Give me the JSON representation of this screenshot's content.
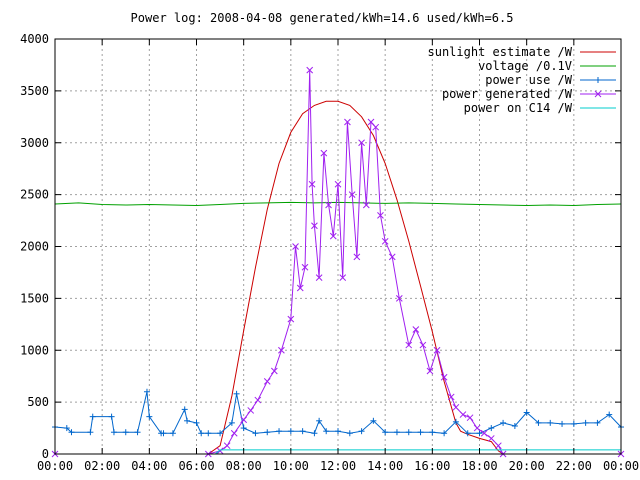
{
  "chart_data": {
    "type": "line",
    "title": "Power log: 2008-04-08 generated/kWh=14.6 used/kWh=6.5",
    "x_tick_labels": [
      "00:00",
      "02:00",
      "04:00",
      "06:00",
      "08:00",
      "10:00",
      "12:00",
      "14:00",
      "16:00",
      "18:00",
      "20:00",
      "22:00",
      "00:00"
    ],
    "xlim_hours": [
      0,
      24
    ],
    "ylim": [
      0,
      4000
    ],
    "y_ticks": [
      0,
      500,
      1000,
      1500,
      2000,
      2500,
      3000,
      3500,
      4000
    ],
    "grid": true,
    "legend_position": "top-right",
    "series": [
      {
        "name": "sunlight estimate /W",
        "color": "#cc0000",
        "marker": "none",
        "x": [
          0,
          6.5,
          7.0,
          7.5,
          8.0,
          8.5,
          9.0,
          9.5,
          10.0,
          10.5,
          11.0,
          11.5,
          12.0,
          12.5,
          13.0,
          13.5,
          14.0,
          14.5,
          15.0,
          15.5,
          16.0,
          16.5,
          17.0,
          17.2,
          17.5,
          18.0,
          18.5,
          18.8,
          19.0,
          24
        ],
        "y": [
          0,
          0,
          80,
          560,
          1190,
          1800,
          2360,
          2800,
          3100,
          3280,
          3360,
          3400,
          3400,
          3360,
          3250,
          3070,
          2800,
          2450,
          2050,
          1620,
          1180,
          700,
          300,
          220,
          190,
          150,
          120,
          30,
          0,
          0
        ]
      },
      {
        "name": "voltage /0.1V",
        "color": "#00a000",
        "marker": "none",
        "x": [
          0,
          1,
          2,
          3,
          4,
          5,
          6,
          7,
          8,
          9,
          10,
          11,
          12,
          13,
          14,
          15,
          16,
          17,
          18,
          19,
          20,
          21,
          22,
          23,
          24
        ],
        "y": [
          2410,
          2420,
          2405,
          2400,
          2405,
          2400,
          2395,
          2405,
          2415,
          2420,
          2425,
          2420,
          2425,
          2420,
          2415,
          2420,
          2415,
          2410,
          2405,
          2400,
          2395,
          2400,
          2395,
          2405,
          2410
        ]
      },
      {
        "name": "power use /W",
        "color": "#0066cc",
        "marker": "plus",
        "x": [
          0,
          0.5,
          0.7,
          1.5,
          1.6,
          2.4,
          2.5,
          3.0,
          3.5,
          3.9,
          4.0,
          4.5,
          4.6,
          5.0,
          5.5,
          5.6,
          6.0,
          6.2,
          6.5,
          7.0,
          7.5,
          7.7,
          8.0,
          8.5,
          9.0,
          9.5,
          10.0,
          10.5,
          11.0,
          11.2,
          11.5,
          12.0,
          12.5,
          13.0,
          13.5,
          14.0,
          14.5,
          15.0,
          15.5,
          16.0,
          16.5,
          17.0,
          17.5,
          18.0,
          18.5,
          19.0,
          19.5,
          20.0,
          20.5,
          21.0,
          21.5,
          22.0,
          22.5,
          23.0,
          23.5,
          24.0
        ],
        "y": [
          260,
          250,
          210,
          210,
          360,
          360,
          210,
          210,
          210,
          600,
          360,
          200,
          200,
          200,
          430,
          320,
          300,
          200,
          200,
          200,
          300,
          580,
          250,
          200,
          210,
          220,
          220,
          220,
          200,
          320,
          220,
          220,
          200,
          220,
          320,
          210,
          210,
          210,
          210,
          210,
          200,
          310,
          200,
          200,
          250,
          300,
          270,
          400,
          300,
          300,
          290,
          290,
          300,
          300,
          380,
          260
        ]
      },
      {
        "name": "power generated /W",
        "color": "#a020f0",
        "marker": "cross",
        "x": [
          0,
          6.5,
          7.0,
          7.3,
          7.6,
          8.0,
          8.3,
          8.6,
          9.0,
          9.3,
          9.6,
          10.0,
          10.2,
          10.4,
          10.6,
          10.8,
          10.9,
          11.0,
          11.2,
          11.4,
          11.6,
          11.8,
          12.0,
          12.2,
          12.4,
          12.6,
          12.8,
          13.0,
          13.2,
          13.4,
          13.6,
          13.8,
          14.0,
          14.3,
          14.6,
          15.0,
          15.3,
          15.6,
          15.9,
          16.2,
          16.5,
          16.8,
          17.0,
          17.3,
          17.6,
          17.9,
          18.2,
          18.5,
          18.8,
          19.0,
          24
        ],
        "y": [
          0,
          0,
          30,
          80,
          200,
          330,
          420,
          520,
          700,
          800,
          1000,
          1300,
          2000,
          1600,
          1800,
          3700,
          2600,
          2200,
          1700,
          2900,
          2400,
          2100,
          2600,
          1700,
          3200,
          2500,
          1900,
          3000,
          2400,
          3200,
          3150,
          2300,
          2050,
          1900,
          1500,
          1050,
          1200,
          1050,
          800,
          1000,
          740,
          550,
          450,
          380,
          350,
          250,
          200,
          150,
          80,
          0,
          0
        ]
      },
      {
        "name": "power on C14 /W",
        "color": "#00cccc",
        "marker": "none",
        "x": [
          0,
          6.8,
          7.0,
          19.0,
          19.2,
          24
        ],
        "y": [
          0,
          0,
          40,
          40,
          40,
          40
        ]
      }
    ]
  }
}
